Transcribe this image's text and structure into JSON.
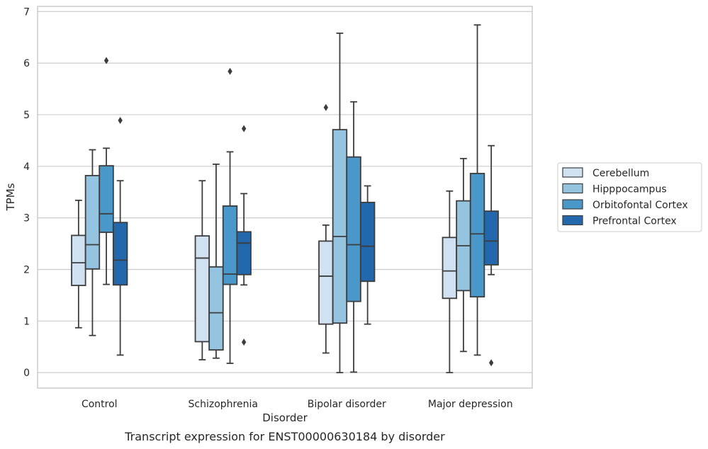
{
  "caption": "Transcript expression for ENST00000630184 by disorder",
  "chart_data": {
    "type": "box",
    "xlabel": "Disorder",
    "ylabel": "TPMs",
    "ylim": [
      -0.3,
      7.1
    ],
    "yticks": [
      0,
      1,
      2,
      3,
      4,
      5,
      6,
      7
    ],
    "grid": true,
    "legend_position": "right",
    "categories": [
      "Control",
      "Schizophrenia",
      "Bipolar disorder",
      "Major depression"
    ],
    "series": [
      {
        "name": "Cerebellum",
        "color": "#d0e1f2",
        "boxes": [
          {
            "whislo": 0.87,
            "q1": 1.69,
            "med": 2.13,
            "q3": 2.66,
            "whishi": 3.34,
            "fliers": []
          },
          {
            "whislo": 0.25,
            "q1": 0.6,
            "med": 2.22,
            "q3": 2.65,
            "whishi": 3.72,
            "fliers": []
          },
          {
            "whislo": 0.38,
            "q1": 0.94,
            "med": 1.87,
            "q3": 2.55,
            "whishi": 2.86,
            "fliers": [
              5.14
            ]
          },
          {
            "whislo": 0.0,
            "q1": 1.44,
            "med": 1.97,
            "q3": 2.62,
            "whishi": 3.52,
            "fliers": []
          }
        ]
      },
      {
        "name": "Hipppocampus",
        "color": "#94c4df",
        "boxes": [
          {
            "whislo": 0.72,
            "q1": 2.01,
            "med": 2.48,
            "q3": 3.82,
            "whishi": 4.32,
            "fliers": []
          },
          {
            "whislo": 0.28,
            "q1": 0.44,
            "med": 1.16,
            "q3": 2.05,
            "whishi": 4.04,
            "fliers": []
          },
          {
            "whislo": 0.0,
            "q1": 0.96,
            "med": 2.64,
            "q3": 4.71,
            "whishi": 6.58,
            "fliers": []
          },
          {
            "whislo": 0.41,
            "q1": 1.59,
            "med": 2.46,
            "q3": 3.33,
            "whishi": 4.15,
            "fliers": []
          }
        ]
      },
      {
        "name": "Orbitofontal Cortex",
        "color": "#4a98c9",
        "boxes": [
          {
            "whislo": 1.71,
            "q1": 2.72,
            "med": 3.08,
            "q3": 4.01,
            "whishi": 4.35,
            "fliers": [
              6.05
            ]
          },
          {
            "whislo": 0.18,
            "q1": 1.71,
            "med": 1.91,
            "q3": 3.23,
            "whishi": 4.28,
            "fliers": [
              5.84
            ]
          },
          {
            "whislo": 0.01,
            "q1": 1.38,
            "med": 2.48,
            "q3": 4.18,
            "whishi": 5.25,
            "fliers": []
          },
          {
            "whislo": 0.34,
            "q1": 1.47,
            "med": 2.69,
            "q3": 3.86,
            "whishi": 6.74,
            "fliers": []
          }
        ]
      },
      {
        "name": "Prefrontal Cortex",
        "color": "#2367ac",
        "boxes": [
          {
            "whislo": 0.34,
            "q1": 1.7,
            "med": 2.18,
            "q3": 2.91,
            "whishi": 3.72,
            "fliers": [
              4.89
            ]
          },
          {
            "whislo": 1.7,
            "q1": 1.9,
            "med": 2.51,
            "q3": 2.73,
            "whishi": 3.47,
            "fliers": [
              4.73,
              0.59
            ]
          },
          {
            "whislo": 0.94,
            "q1": 1.77,
            "med": 2.45,
            "q3": 3.3,
            "whishi": 3.62,
            "fliers": []
          },
          {
            "whislo": 1.9,
            "q1": 2.09,
            "med": 2.55,
            "q3": 3.13,
            "whishi": 4.4,
            "fliers": [
              0.19
            ]
          }
        ]
      }
    ]
  }
}
